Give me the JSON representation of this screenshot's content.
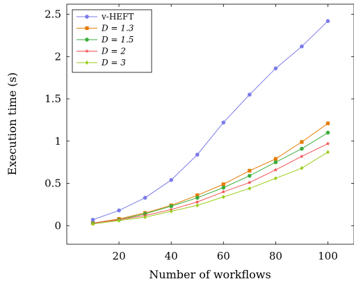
{
  "chart_data": {
    "type": "line",
    "title": "",
    "xlabel": "Number of workflows",
    "ylabel": "Execution time (s)",
    "x": [
      10,
      20,
      30,
      40,
      50,
      60,
      70,
      80,
      90,
      100
    ],
    "xlim": [
      0,
      110
    ],
    "ylim": [
      -0.22,
      2.62
    ],
    "xticks": [
      20,
      40,
      60,
      80,
      100
    ],
    "yticks": [
      0,
      0.5,
      1,
      1.5,
      2,
      2.5
    ],
    "ytick_labels": [
      "0",
      "0.5",
      "1",
      "1.5",
      "2",
      "2.5"
    ],
    "grid": false,
    "legend_position": "top-left",
    "series": [
      {
        "name": "v-HEFT",
        "color": "#7b7bea",
        "marker": "circle",
        "values": [
          0.07,
          0.18,
          0.33,
          0.54,
          0.84,
          1.22,
          1.55,
          1.86,
          2.12,
          2.42
        ]
      },
      {
        "name": "D = 1.3",
        "color": "#e57b00",
        "marker": "square",
        "values": [
          0.03,
          0.08,
          0.15,
          0.24,
          0.36,
          0.49,
          0.65,
          0.79,
          0.99,
          1.21
        ]
      },
      {
        "name": "D = 1.5",
        "color": "#3aae3a",
        "marker": "circle",
        "values": [
          0.03,
          0.07,
          0.14,
          0.23,
          0.33,
          0.45,
          0.59,
          0.75,
          0.91,
          1.1
        ]
      },
      {
        "name": "D = 2",
        "color": "#f05050",
        "marker": "star",
        "values": [
          0.03,
          0.07,
          0.12,
          0.19,
          0.28,
          0.4,
          0.51,
          0.66,
          0.82,
          0.97
        ]
      },
      {
        "name": "D = 3",
        "color": "#9acd1a",
        "marker": "diamond",
        "values": [
          0.02,
          0.06,
          0.1,
          0.17,
          0.24,
          0.34,
          0.44,
          0.56,
          0.68,
          0.87
        ]
      }
    ]
  }
}
